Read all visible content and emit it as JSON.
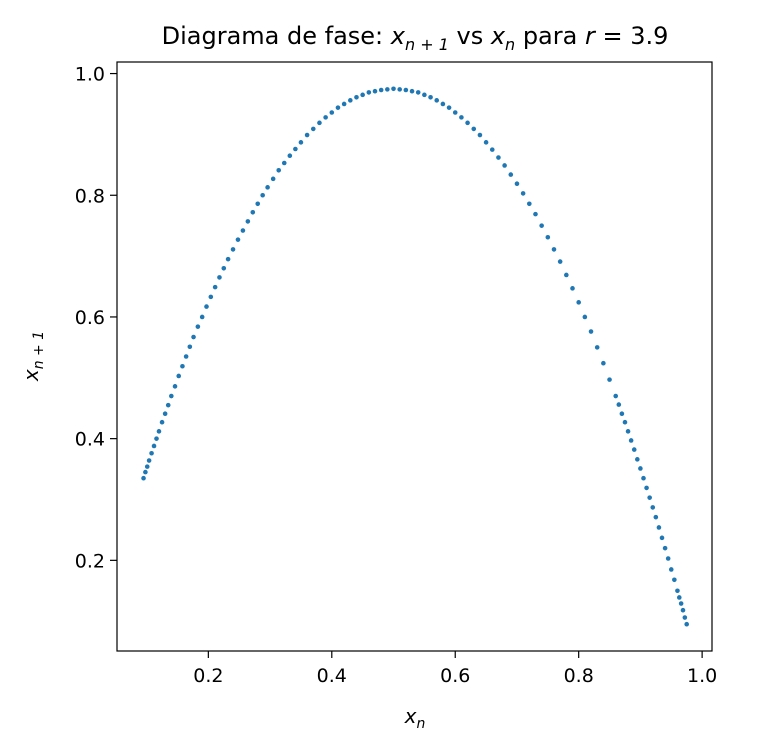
{
  "chart_data": {
    "type": "scatter",
    "title": {
      "prefix": "Diagrama de fase: ",
      "x1": "x",
      "x1_sub": "n + 1",
      "mid": " vs ",
      "x2": "x",
      "x2_sub": "n",
      "suffix_pre": " para ",
      "r": "r",
      "suffix_post": " = 3.9"
    },
    "xlabel": {
      "base": "x",
      "sub": "n"
    },
    "ylabel": {
      "base": "x",
      "sub": "n + 1"
    },
    "r": 3.9,
    "xlim": [
      0.052,
      1.016
    ],
    "ylim": [
      0.051,
      1.019
    ],
    "x_ticks": [
      0.2,
      0.4,
      0.6,
      0.8,
      1.0
    ],
    "x_tick_labels": [
      "0.2",
      "0.4",
      "0.6",
      "0.8",
      "1.0"
    ],
    "y_ticks": [
      0.2,
      0.4,
      0.6,
      0.8,
      1.0
    ],
    "y_tick_labels": [
      "0.2",
      "0.4",
      "0.6",
      "0.8",
      "1.0"
    ],
    "grid": false,
    "marker_color": "#1f77b4",
    "x": [
      0.095,
      0.098,
      0.101,
      0.104,
      0.108,
      0.112,
      0.116,
      0.12,
      0.125,
      0.13,
      0.135,
      0.14,
      0.146,
      0.152,
      0.158,
      0.164,
      0.17,
      0.176,
      0.183,
      0.19,
      0.197,
      0.204,
      0.211,
      0.218,
      0.225,
      0.232,
      0.24,
      0.248,
      0.256,
      0.264,
      0.272,
      0.28,
      0.288,
      0.296,
      0.305,
      0.314,
      0.323,
      0.332,
      0.341,
      0.35,
      0.36,
      0.37,
      0.38,
      0.39,
      0.4,
      0.41,
      0.42,
      0.43,
      0.44,
      0.45,
      0.46,
      0.47,
      0.48,
      0.49,
      0.5,
      0.51,
      0.52,
      0.53,
      0.54,
      0.55,
      0.56,
      0.57,
      0.58,
      0.59,
      0.6,
      0.61,
      0.62,
      0.63,
      0.64,
      0.65,
      0.66,
      0.67,
      0.68,
      0.69,
      0.7,
      0.71,
      0.72,
      0.73,
      0.74,
      0.75,
      0.76,
      0.77,
      0.78,
      0.79,
      0.8,
      0.81,
      0.82,
      0.83,
      0.84,
      0.85,
      0.86,
      0.865,
      0.87,
      0.875,
      0.88,
      0.885,
      0.89,
      0.895,
      0.9,
      0.905,
      0.91,
      0.915,
      0.92,
      0.925,
      0.93,
      0.935,
      0.94,
      0.945,
      0.95,
      0.955,
      0.96,
      0.963,
      0.966,
      0.969,
      0.972,
      0.975
    ],
    "y": [
      0.335,
      0.345,
      0.354,
      0.364,
      0.376,
      0.388,
      0.4,
      0.412,
      0.427,
      0.441,
      0.455,
      0.47,
      0.486,
      0.503,
      0.519,
      0.535,
      0.551,
      0.567,
      0.584,
      0.6,
      0.617,
      0.633,
      0.649,
      0.665,
      0.68,
      0.695,
      0.711,
      0.727,
      0.742,
      0.757,
      0.772,
      0.786,
      0.8,
      0.813,
      0.827,
      0.841,
      0.853,
      0.865,
      0.876,
      0.887,
      0.899,
      0.909,
      0.919,
      0.928,
      0.936,
      0.944,
      0.95,
      0.956,
      0.961,
      0.965,
      0.969,
      0.971,
      0.973,
      0.974,
      0.975,
      0.974,
      0.973,
      0.971,
      0.969,
      0.965,
      0.961,
      0.956,
      0.95,
      0.944,
      0.936,
      0.928,
      0.919,
      0.909,
      0.899,
      0.887,
      0.875,
      0.862,
      0.849,
      0.834,
      0.819,
      0.803,
      0.786,
      0.769,
      0.75,
      0.731,
      0.711,
      0.691,
      0.669,
      0.647,
      0.624,
      0.6,
      0.576,
      0.55,
      0.524,
      0.497,
      0.47,
      0.456,
      0.441,
      0.427,
      0.412,
      0.397,
      0.382,
      0.366,
      0.351,
      0.335,
      0.319,
      0.303,
      0.287,
      0.271,
      0.254,
      0.237,
      0.22,
      0.203,
      0.185,
      0.168,
      0.15,
      0.139,
      0.129,
      0.118,
      0.106,
      0.095
    ]
  }
}
